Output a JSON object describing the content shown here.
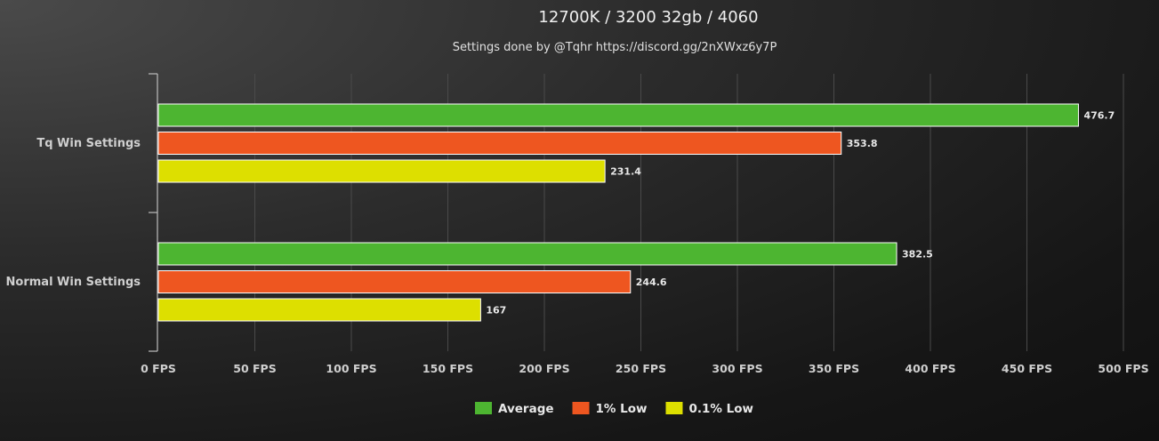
{
  "chart_data": {
    "type": "bar",
    "orientation": "horizontal",
    "title": "12700K / 3200 32gb / 4060",
    "subtitle": "Settings done by @Tqhr https://discord.gg/2nXWxz6y7P",
    "categories": [
      "Tq Win Settings",
      "Normal Win Settings"
    ],
    "series": [
      {
        "name": "Average",
        "color": "#4db531",
        "values": [
          476.7,
          382.5
        ]
      },
      {
        "name": "1% Low",
        "color": "#ee5620",
        "values": [
          353.8,
          244.6
        ]
      },
      {
        "name": "0.1% Low",
        "color": "#dddf00",
        "values": [
          231.4,
          167
        ]
      }
    ],
    "xlim": [
      0,
      500
    ],
    "x_ticks": [
      0,
      50,
      100,
      150,
      200,
      250,
      300,
      350,
      400,
      450,
      500
    ],
    "tick_suffix": " FPS",
    "grid": true,
    "legend_position": "bottom-center",
    "data_labels": [
      "476.7",
      "353.8",
      "231.4",
      "382.5",
      "244.6",
      "167"
    ]
  }
}
